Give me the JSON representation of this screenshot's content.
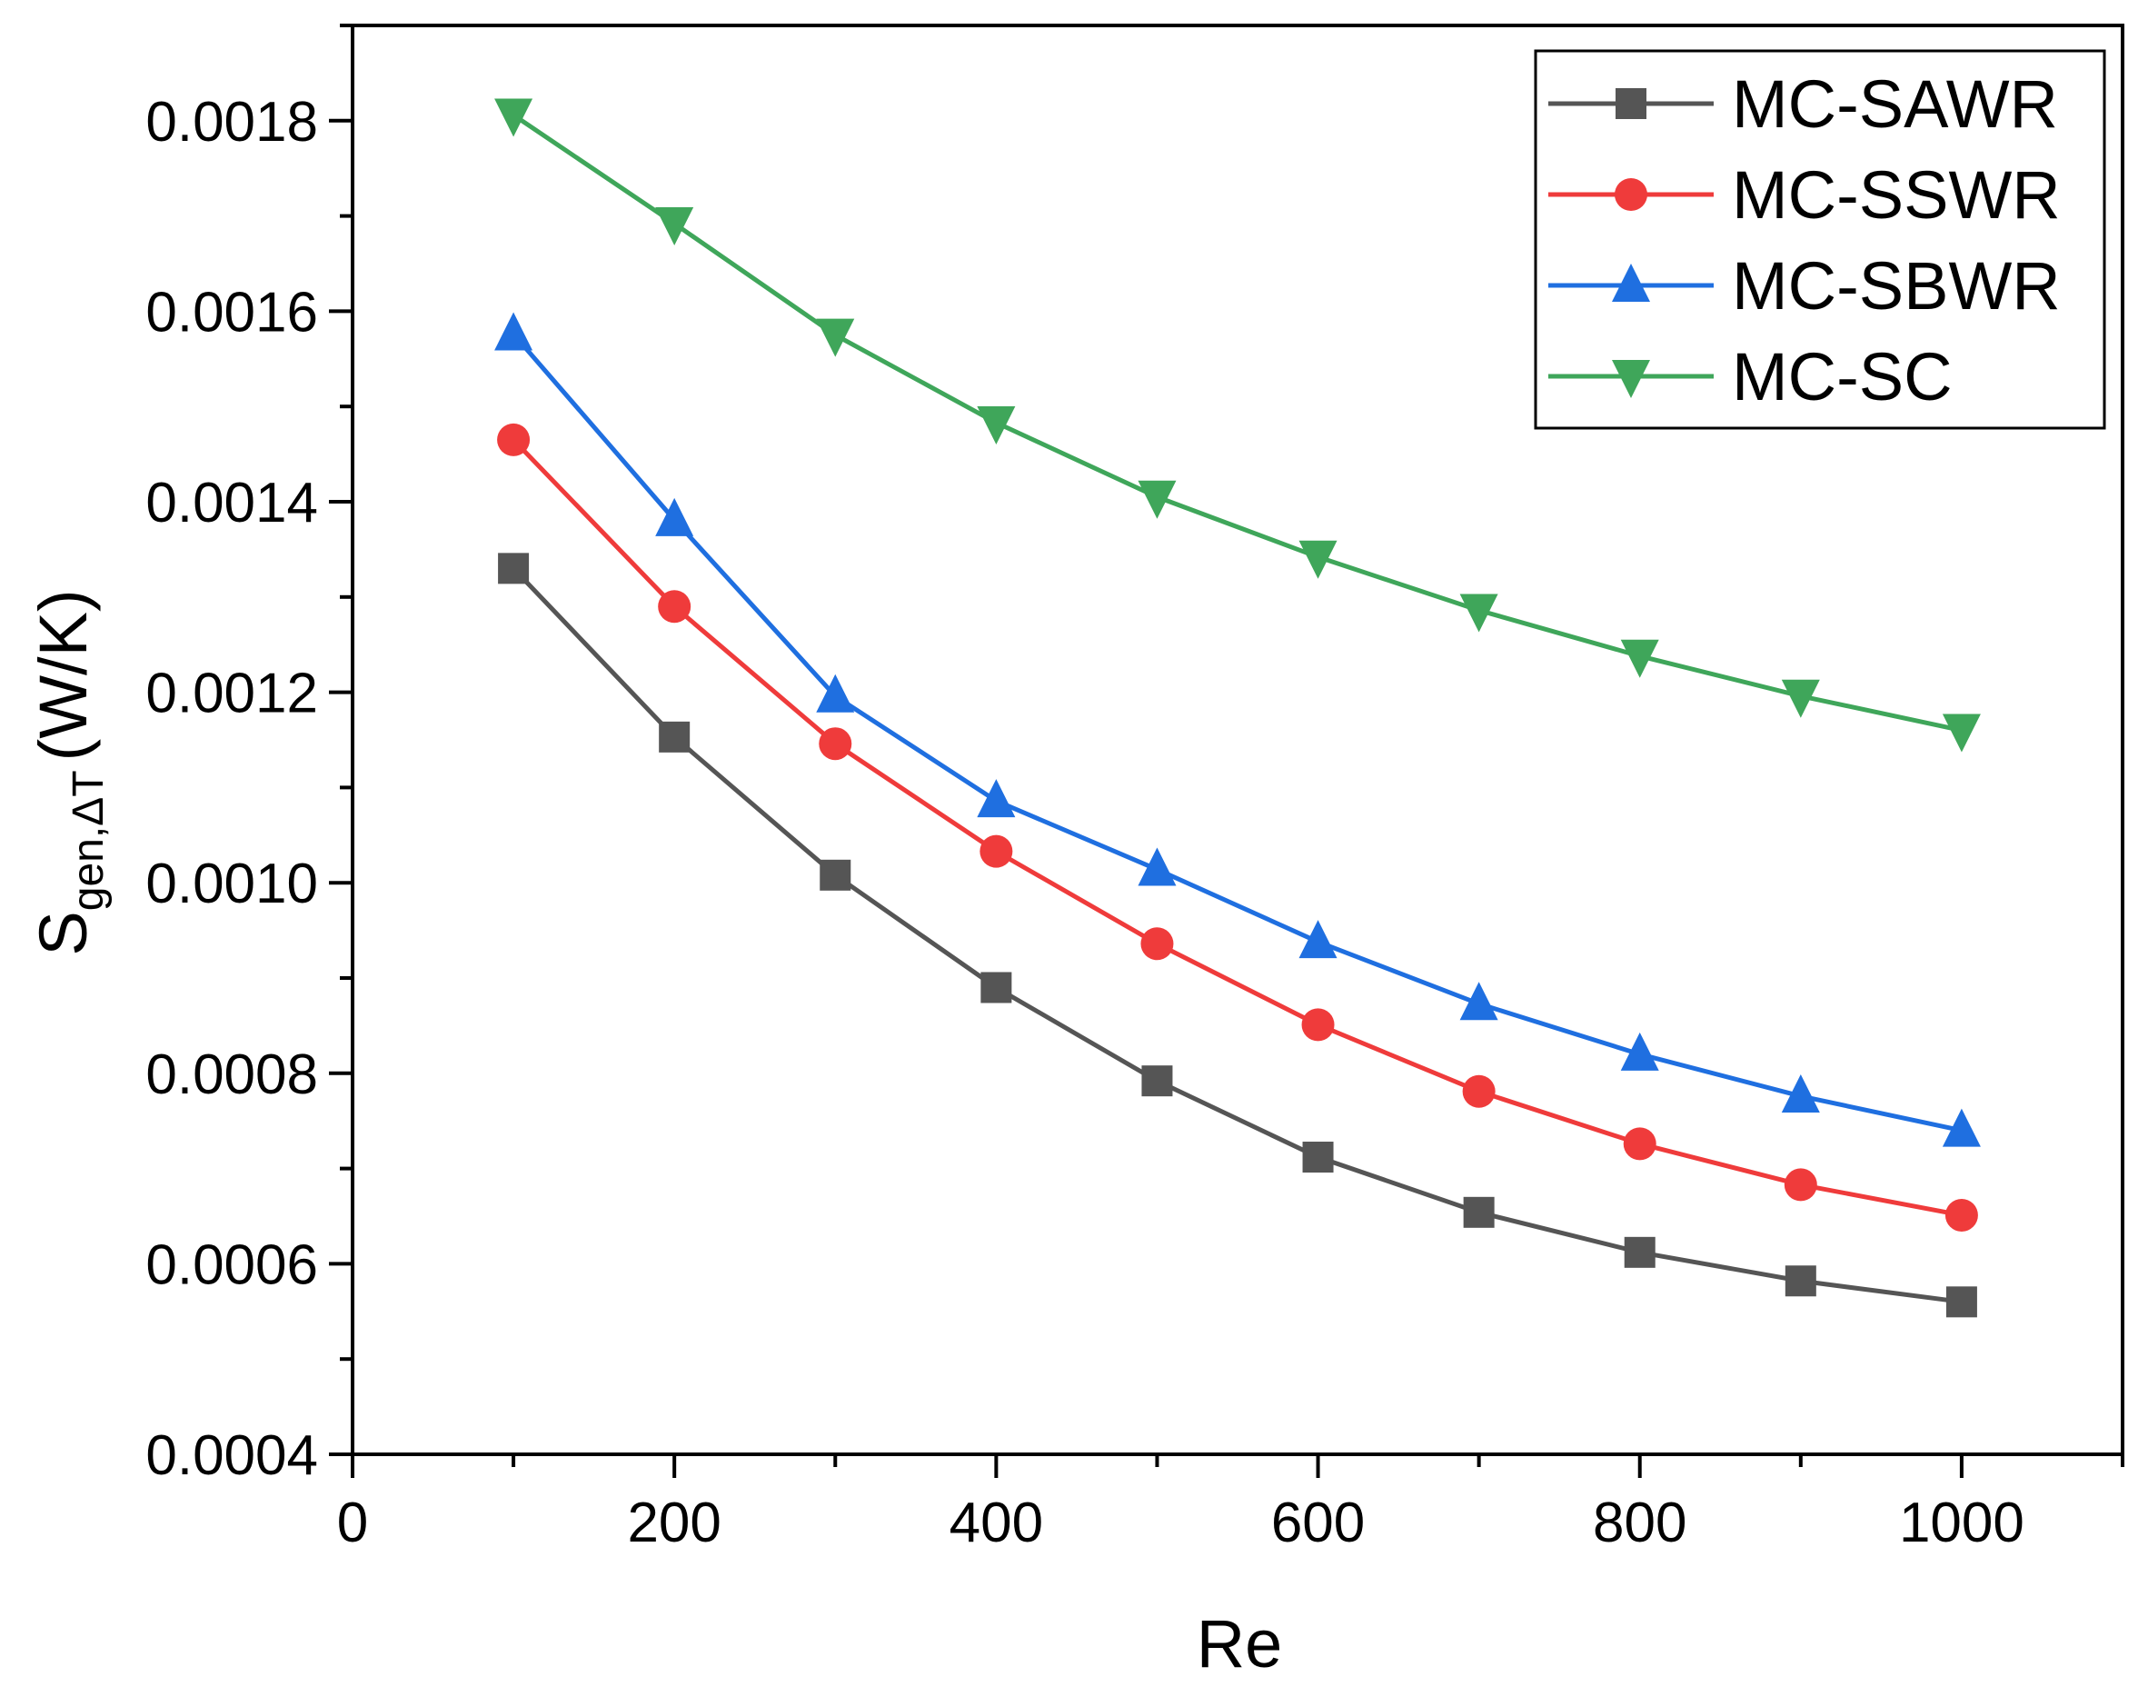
{
  "chart_data": {
    "type": "line",
    "title": "",
    "xlabel": "Re",
    "ylabel": {
      "main": "S",
      "subscript": "gen,ΔT",
      "unit": "(W/K)"
    },
    "xlim": [
      0,
      1100
    ],
    "ylim": [
      0.0004,
      0.0019
    ],
    "xticks": [
      0,
      200,
      400,
      600,
      800,
      1000
    ],
    "xtick_labels": [
      "0",
      "200",
      "400",
      "600",
      "800",
      "1000"
    ],
    "yticks": [
      0.0004,
      0.0006,
      0.0008,
      0.001,
      0.0012,
      0.0014,
      0.0016,
      0.0018
    ],
    "ytick_labels": [
      "0.0004",
      "0.0006",
      "0.0008",
      "0.0010",
      "0.0012",
      "0.0014",
      "0.0016",
      "0.0018"
    ],
    "grid": false,
    "legend_position": "top-right",
    "x": [
      100,
      200,
      300,
      400,
      500,
      600,
      700,
      800,
      900,
      1000
    ],
    "series": [
      {
        "name": "MC-SAWR",
        "color": "#555555",
        "marker": "square",
        "values": [
          0.00133,
          0.001153,
          0.001008,
          0.00089,
          0.000792,
          0.000712,
          0.000654,
          0.000612,
          0.000582,
          0.00056
        ]
      },
      {
        "name": "MC-SSWR",
        "color": "#ef3b3b",
        "marker": "circle",
        "values": [
          0.001465,
          0.00129,
          0.001146,
          0.001033,
          0.000936,
          0.000851,
          0.000781,
          0.000726,
          0.000683,
          0.000651
        ]
      },
      {
        "name": "MC-SBWR",
        "color": "#1f6fe0",
        "marker": "triangle-up",
        "values": [
          0.001576,
          0.001381,
          0.001196,
          0.001086,
          0.001014,
          0.000938,
          0.000873,
          0.00082,
          0.000776,
          0.00074
        ]
      },
      {
        "name": "MC-SC",
        "color": "#3fa65a",
        "marker": "triangle-down",
        "values": [
          0.001806,
          0.001692,
          0.001575,
          0.001483,
          0.001405,
          0.001342,
          0.001286,
          0.001238,
          0.001196,
          0.00116
        ]
      }
    ]
  }
}
